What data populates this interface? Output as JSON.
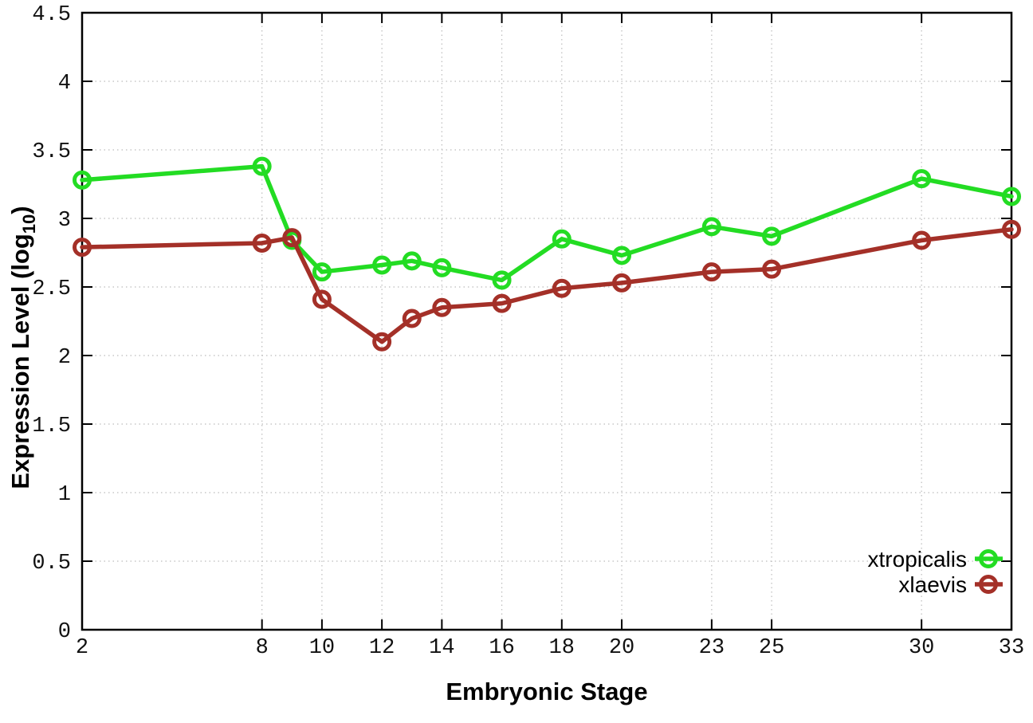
{
  "chart_data": {
    "type": "line",
    "title": "",
    "xlabel": "Embryonic Stage",
    "ylabel": "Expression Level (log10)",
    "ylabel_base": "Expression Level (log",
    "ylabel_sub": "10",
    "ylabel_close": ")",
    "x": [
      2,
      8,
      9,
      10,
      12,
      13,
      14,
      16,
      18,
      20,
      23,
      25,
      30,
      33
    ],
    "xticks": [
      2,
      8,
      10,
      12,
      14,
      16,
      18,
      20,
      23,
      25,
      30,
      33
    ],
    "ytick_values": [
      0,
      0.5,
      1,
      1.5,
      2,
      2.5,
      3,
      3.5,
      4,
      4.5
    ],
    "yticks": [
      "0",
      "0.5",
      "1",
      "1.5",
      "2",
      "2.5",
      "3",
      "3.5",
      "4",
      "4.5"
    ],
    "xlim": [
      2,
      33
    ],
    "ylim": [
      0,
      4.5
    ],
    "grid": true,
    "legend_position": "bottom-right",
    "series": [
      {
        "name": "xtropicalis",
        "color": "#23dc23",
        "values": [
          3.28,
          3.38,
          2.84,
          2.61,
          2.66,
          2.69,
          2.64,
          2.55,
          2.85,
          2.73,
          2.94,
          2.87,
          3.29,
          3.16
        ]
      },
      {
        "name": "xlaevis",
        "color": "#a43028",
        "values": [
          2.79,
          2.82,
          2.86,
          2.41,
          2.1,
          2.27,
          2.35,
          2.38,
          2.49,
          2.53,
          2.61,
          2.63,
          2.84,
          2.92
        ]
      }
    ]
  }
}
